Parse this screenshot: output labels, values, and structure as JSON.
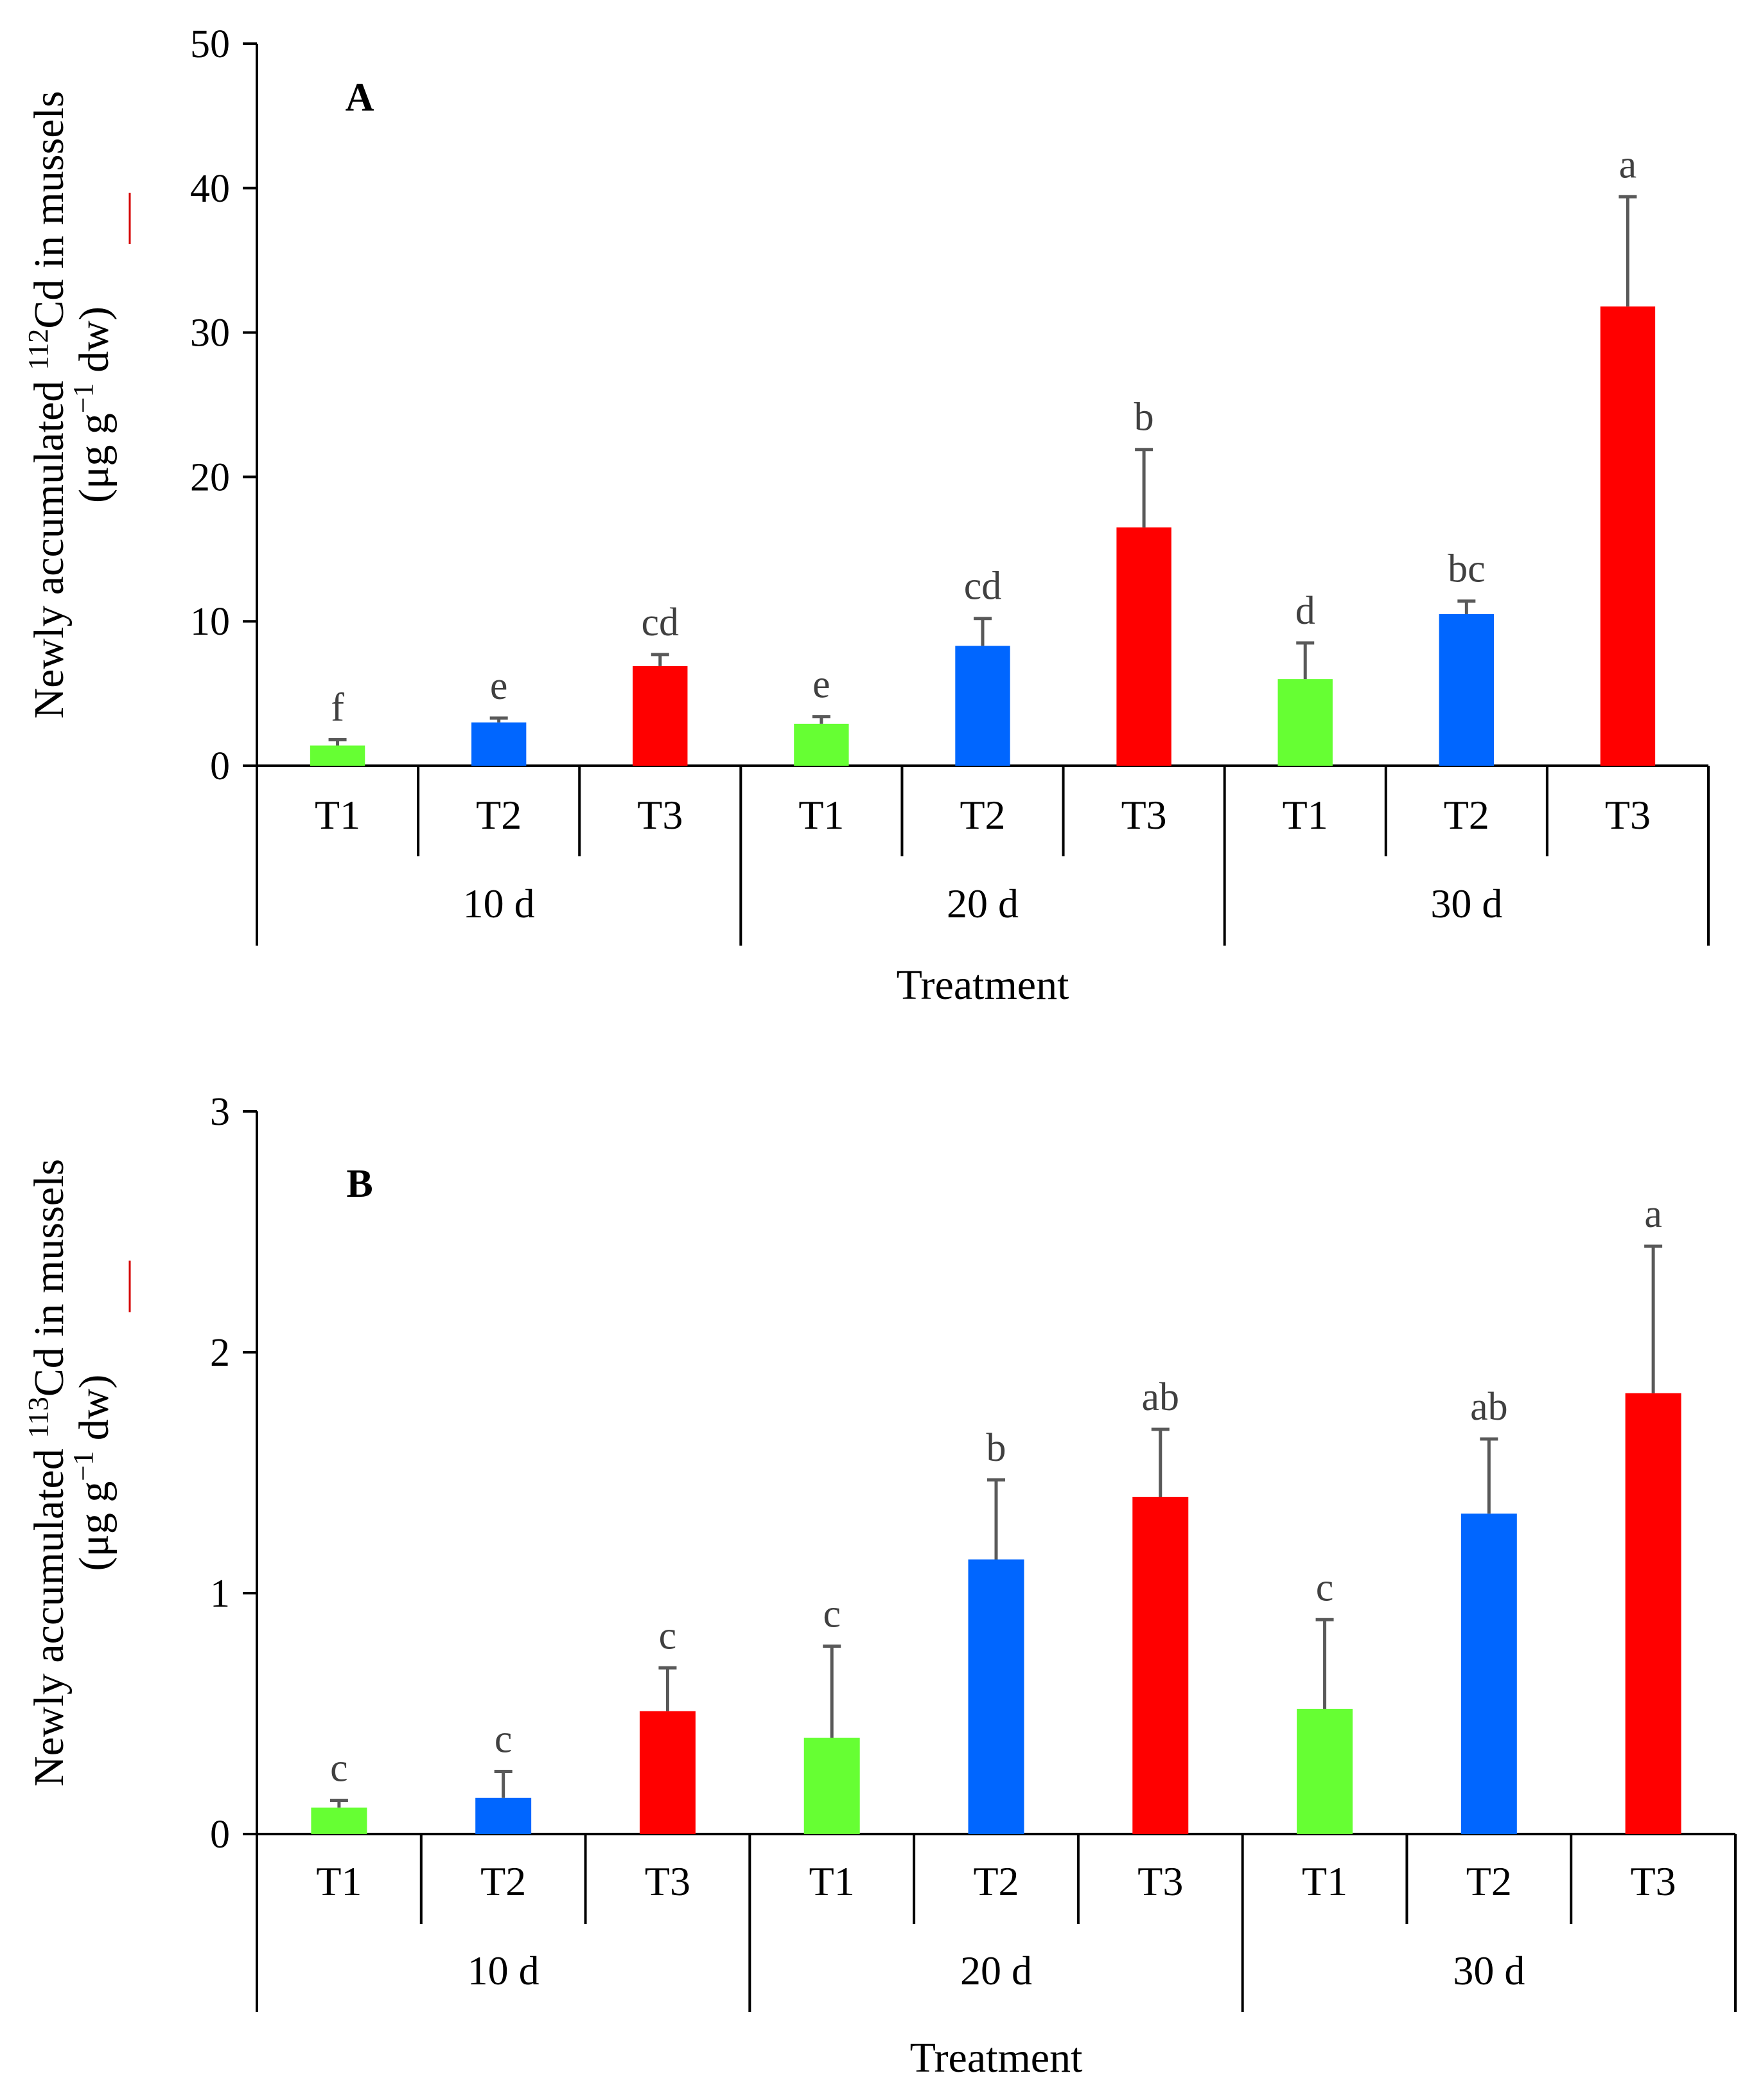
{
  "colors": {
    "T1": "#66ff33",
    "T2": "#0066ff",
    "T3": "#ff0000"
  },
  "chart_data": [
    {
      "type": "bar",
      "panel_label": "A",
      "title": "",
      "ylabel_pre": "Newly accumulated ",
      "ylabel_isotope": "112",
      "ylabel_post": "Cd in mussels",
      "yunit_pre": "(μg g",
      "yunit_exp": "−1",
      "yunit_post": " dw)",
      "xlabel": "Treatment",
      "ylim": [
        0,
        50
      ],
      "yticks": [
        0,
        10,
        20,
        30,
        40,
        50
      ],
      "groups": [
        "10 d",
        "20 d",
        "30 d"
      ],
      "categories": [
        "T1",
        "T2",
        "T3"
      ],
      "bars": [
        {
          "group": "10 d",
          "treatment": "T1",
          "value": 1.4,
          "error": 0.4,
          "letter": "f"
        },
        {
          "group": "10 d",
          "treatment": "T2",
          "value": 3.0,
          "error": 0.3,
          "letter": "e"
        },
        {
          "group": "10 d",
          "treatment": "T3",
          "value": 6.9,
          "error": 0.8,
          "letter": "cd"
        },
        {
          "group": "20 d",
          "treatment": "T1",
          "value": 2.9,
          "error": 0.5,
          "letter": "e"
        },
        {
          "group": "20 d",
          "treatment": "T2",
          "value": 8.3,
          "error": 1.9,
          "letter": "cd"
        },
        {
          "group": "20 d",
          "treatment": "T3",
          "value": 16.5,
          "error": 5.4,
          "letter": "b"
        },
        {
          "group": "30 d",
          "treatment": "T1",
          "value": 6.0,
          "error": 2.5,
          "letter": "d"
        },
        {
          "group": "30 d",
          "treatment": "T2",
          "value": 10.5,
          "error": 0.9,
          "letter": "bc"
        },
        {
          "group": "30 d",
          "treatment": "T3",
          "value": 31.8,
          "error": 7.6,
          "letter": "a"
        }
      ]
    },
    {
      "type": "bar",
      "panel_label": "B",
      "title": "",
      "ylabel_pre": "Newly accumulated ",
      "ylabel_isotope": "113",
      "ylabel_post": "Cd in mussels",
      "yunit_pre": "(μg g",
      "yunit_exp": "−1",
      "yunit_post": " dw)",
      "xlabel": "Treatment",
      "ylim": [
        0,
        3
      ],
      "yticks": [
        0,
        1,
        2,
        3
      ],
      "groups": [
        "10 d",
        "20 d",
        "30 d"
      ],
      "categories": [
        "T1",
        "T2",
        "T3"
      ],
      "bars": [
        {
          "group": "10 d",
          "treatment": "T1",
          "value": 0.11,
          "error": 0.03,
          "letter": "c"
        },
        {
          "group": "10 d",
          "treatment": "T2",
          "value": 0.15,
          "error": 0.11,
          "letter": "c"
        },
        {
          "group": "10 d",
          "treatment": "T3",
          "value": 0.51,
          "error": 0.18,
          "letter": "c"
        },
        {
          "group": "20 d",
          "treatment": "T1",
          "value": 0.4,
          "error": 0.38,
          "letter": "c"
        },
        {
          "group": "20 d",
          "treatment": "T2",
          "value": 1.14,
          "error": 0.33,
          "letter": "b"
        },
        {
          "group": "20 d",
          "treatment": "T3",
          "value": 1.4,
          "error": 0.28,
          "letter": "ab"
        },
        {
          "group": "30 d",
          "treatment": "T1",
          "value": 0.52,
          "error": 0.37,
          "letter": "c"
        },
        {
          "group": "30 d",
          "treatment": "T2",
          "value": 1.33,
          "error": 0.31,
          "letter": "ab"
        },
        {
          "group": "30 d",
          "treatment": "T3",
          "value": 1.83,
          "error": 0.61,
          "letter": "a"
        }
      ]
    }
  ]
}
